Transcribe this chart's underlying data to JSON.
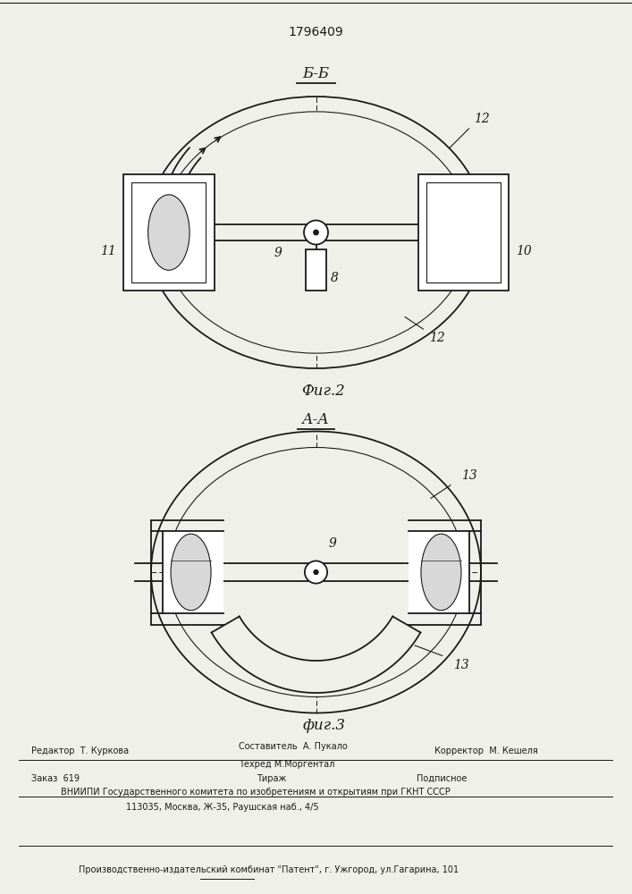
{
  "patent_number": "1796409",
  "bg_color": "#f0f0eb",
  "line_color": "#1a1a1a",
  "fig2_label": "Б-Б",
  "fig2_caption": "Фиг.2",
  "fig3_label": "А-А",
  "fig3_caption": "фиг.3",
  "footer_editor": "Редактор  Т. Куркова",
  "footer_author": "Составитель  А. Пукало",
  "footer_tech": "Техред М.Моргентал",
  "footer_corrector": "Корректор  М. Кешеля",
  "footer_order": "Заказ  619",
  "footer_print": "Тираж",
  "footer_sub": "Подписное",
  "footer_vniip1": "ВНИИПИ Государственного комитета по изобретениям и открытиям при ГКНТ СССР",
  "footer_vniip2": "113035, Москва, Ж-35, Раушская наб., 4/5",
  "footer_plant": "Производственно-издательский комбинат \"Патент\", г. Ужгород, ул.Гагарина, 101"
}
